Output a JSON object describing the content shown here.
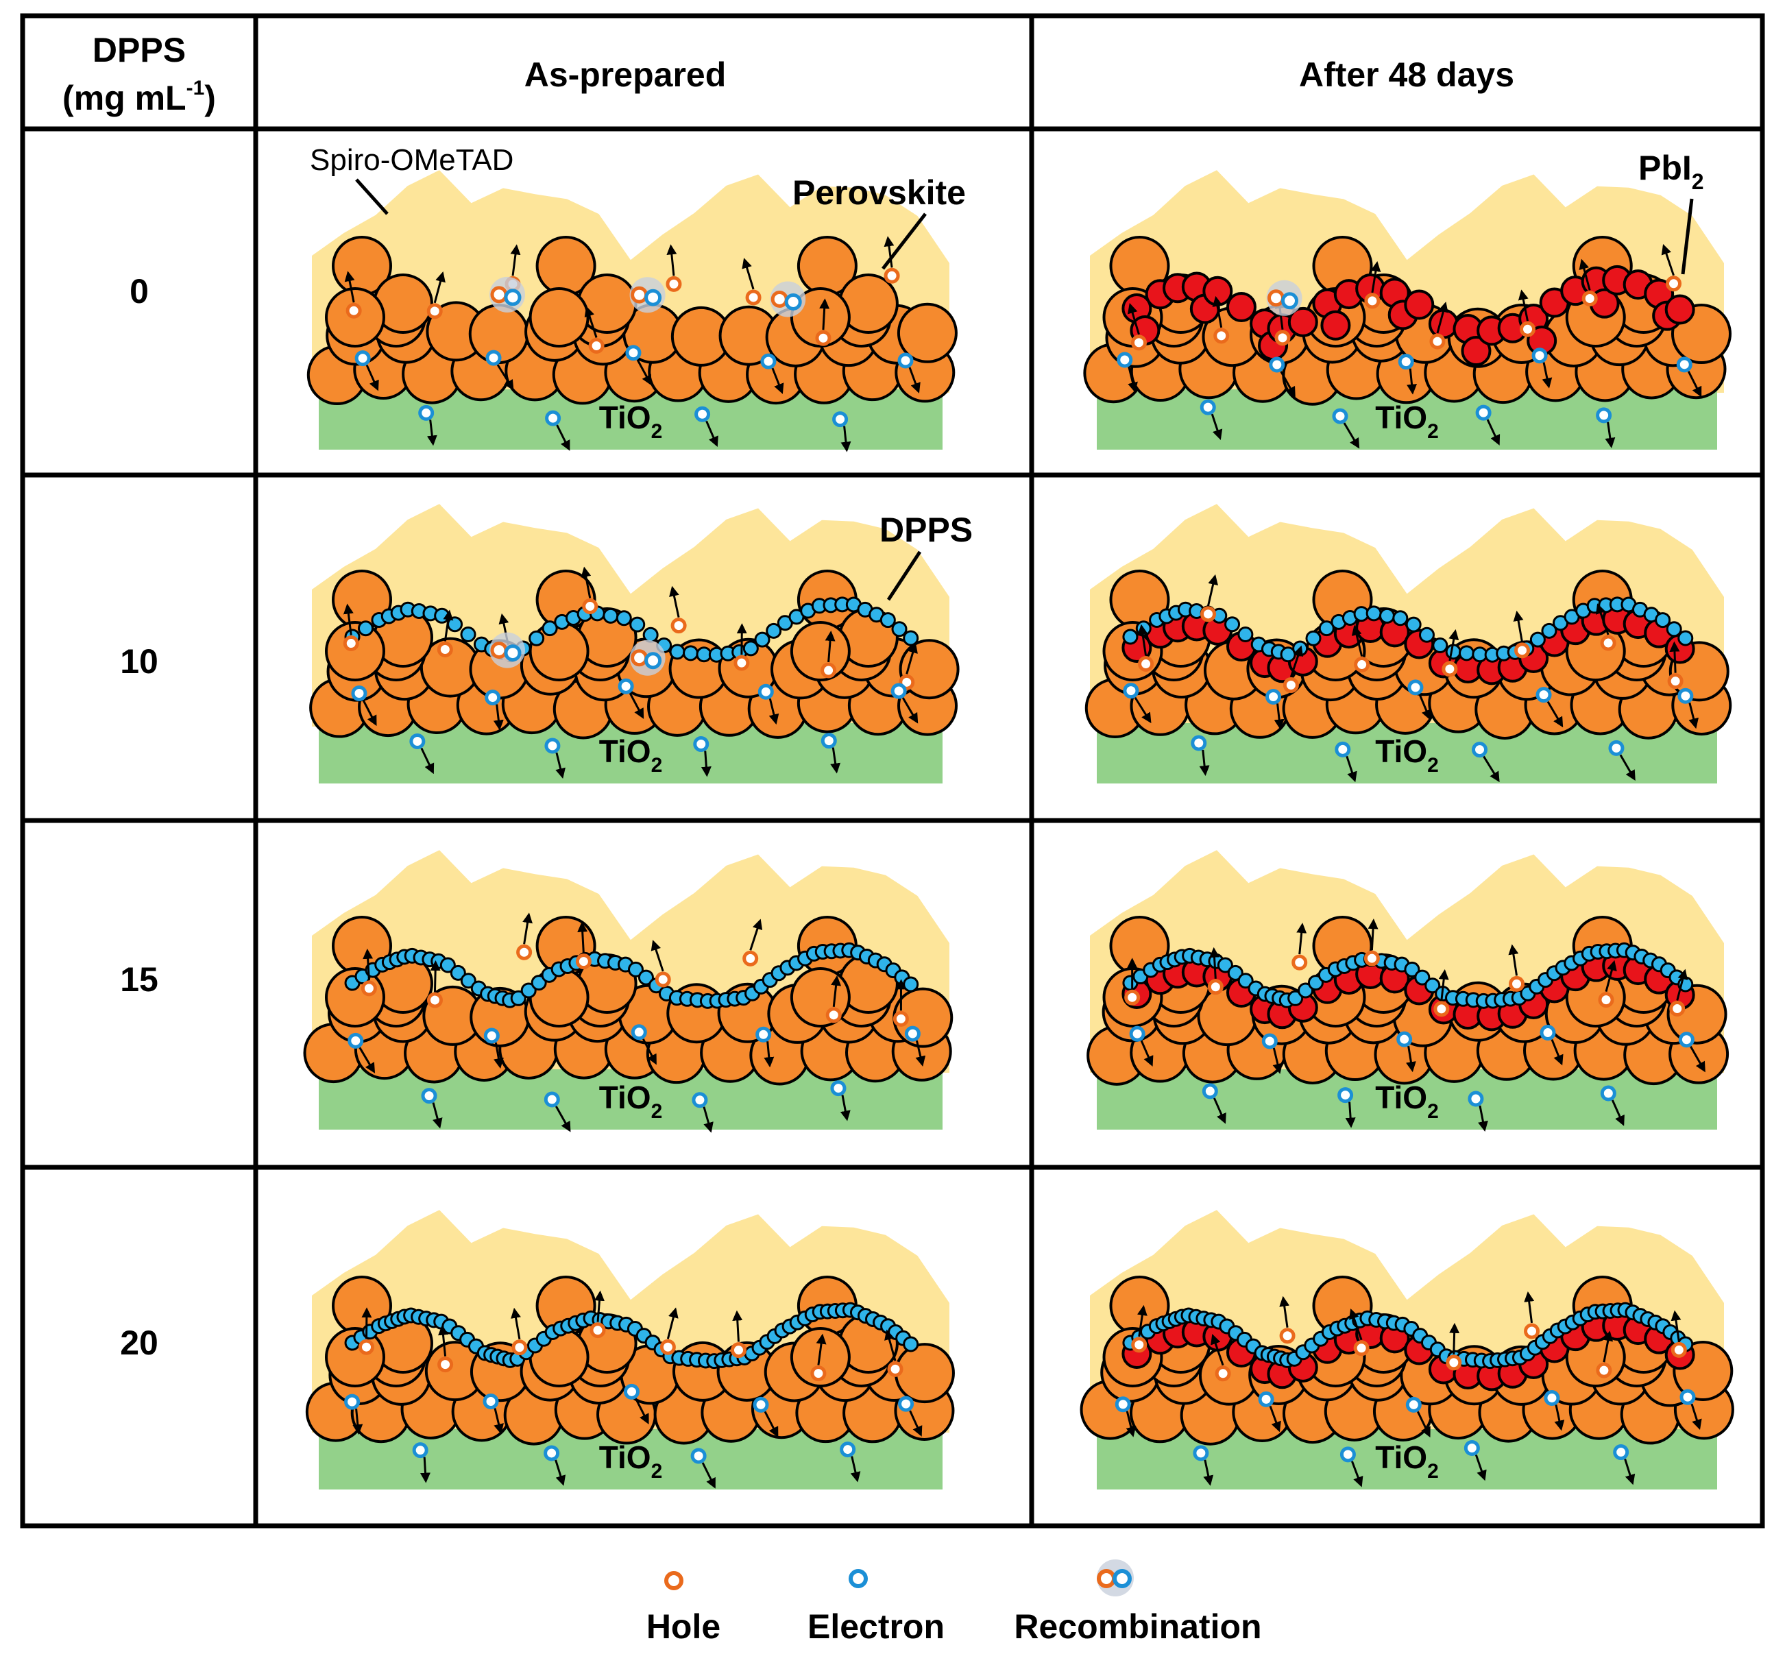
{
  "header": {
    "dpps_label_line1": "DPPS",
    "dpps_label_line2_main": "(mg mL",
    "dpps_label_line2_sup": "-1",
    "dpps_label_line2_end": ")",
    "col_as_prepared": "As-prepared",
    "col_after": "After 48 days"
  },
  "rows": [
    {
      "dpps": "0"
    },
    {
      "dpps": "10"
    },
    {
      "dpps": "15"
    },
    {
      "dpps": "20"
    }
  ],
  "labels": {
    "tio2_main": "TiO",
    "tio2_sub": "2",
    "spiro": "Spiro-OMeTAD",
    "perovskite": "Perovskite",
    "pbi2_main": "PbI",
    "pbi2_sub": "2",
    "dpps": "DPPS"
  },
  "legend": {
    "hole": "Hole",
    "electron": "Electron",
    "recombination": "Recombination"
  },
  "colors": {
    "perovskite": "#f58a2e",
    "spiro": "#fde59a",
    "tio2": "#93d18a",
    "pbi2": "#e8141b",
    "dpps": "#2fb4ea",
    "hole": "#ea6a1c",
    "electron": "#1b8fd6",
    "outline": "#000000"
  }
}
